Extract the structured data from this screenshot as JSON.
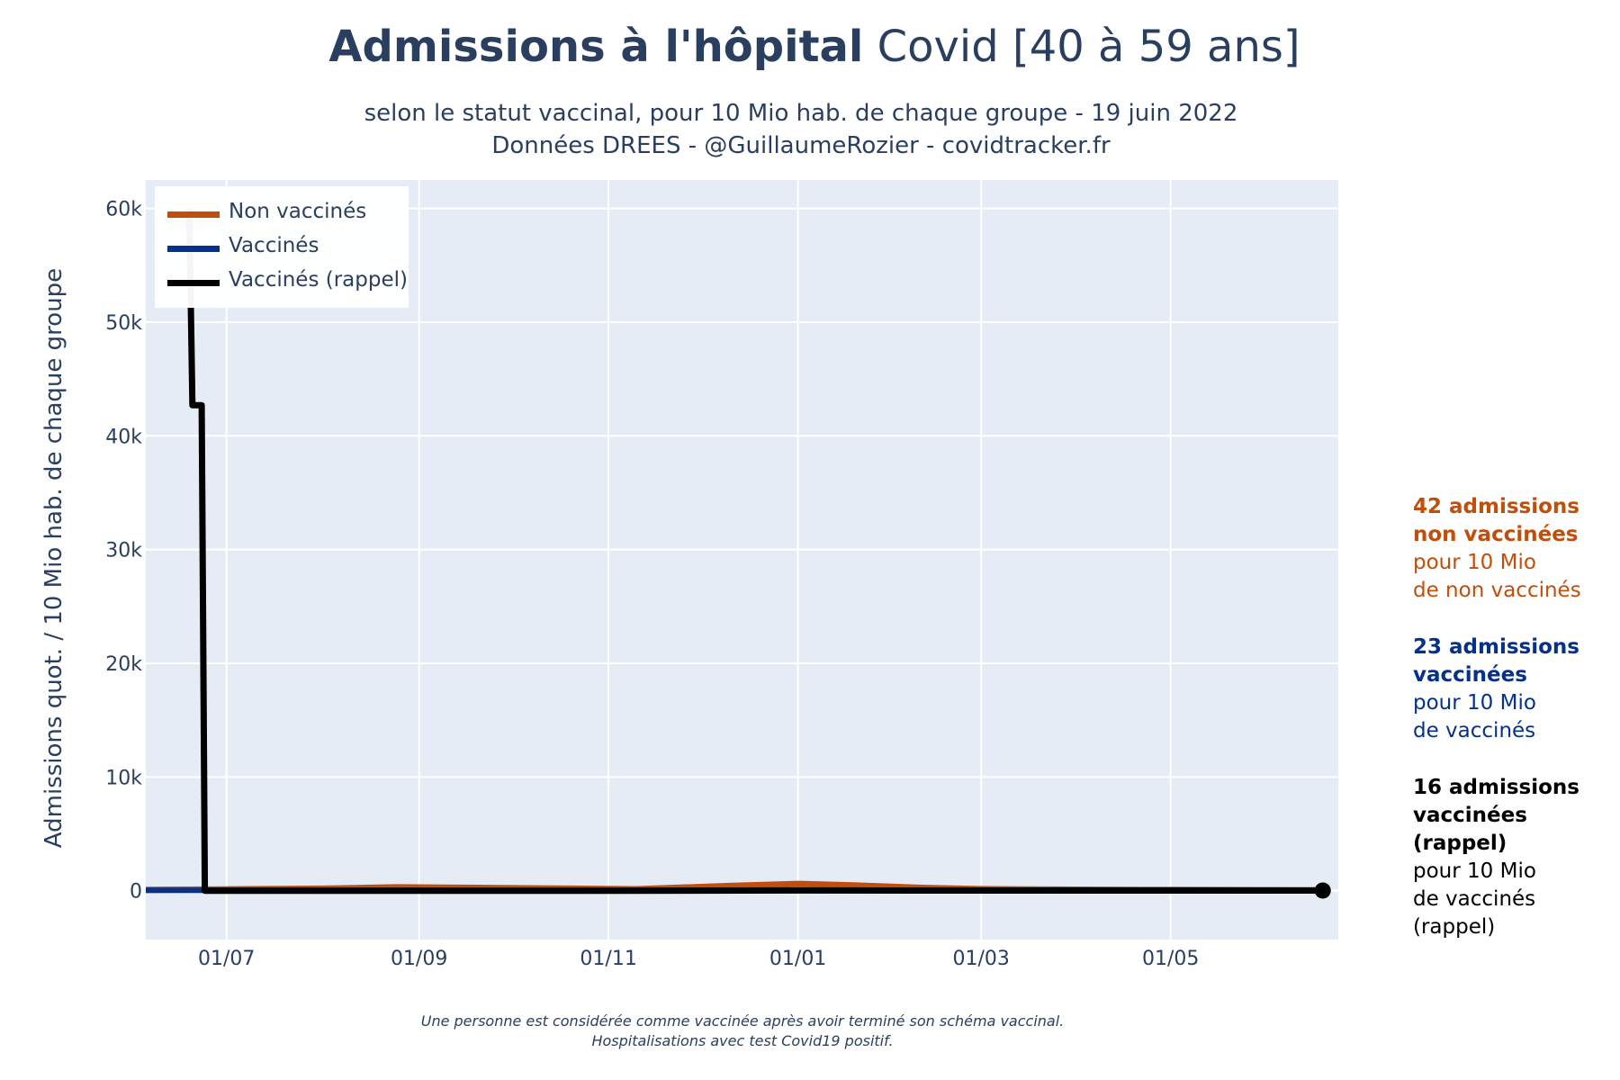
{
  "title_bold": "Admissions à l'hôpital",
  "title_rest": " Covid [40 à 59 ans]",
  "subtitle_line1": "selon le statut vaccinal, pour 10 Mio hab. de chaque groupe - 19 juin 2022",
  "subtitle_line2": "Données DREES - @GuillaumeRozier - covidtracker.fr",
  "footer_line1": "Une personne est considérée comme vaccinée après avoir terminé son schéma vaccinal.",
  "footer_line2": "Hospitalisations avec test Covid19 positif.",
  "side_annotations": [
    {
      "bold1": "42 admissions",
      "bold2": "non vaccinées",
      "line1": "pour 10 Mio",
      "line2": "de non vaccinés",
      "color": "#c14e0a"
    },
    {
      "bold1": "23 admissions",
      "bold2": "vaccinées",
      "line1": "pour 10 Mio",
      "line2": "de vaccinés",
      "color": "#05318a"
    },
    {
      "bold1": "16 admissions",
      "bold2": "vaccinées (rappel)",
      "line1": "pour 10 Mio",
      "line2": "de vaccinés (rappel)",
      "color": "#000000"
    }
  ],
  "chart_data": {
    "type": "line",
    "ylabel": "Admissions quot. / 10 Mio hab. de chaque groupe",
    "xlabel": "",
    "x_ticks": [
      "01/07",
      "01/09",
      "01/11",
      "01/01",
      "01/03",
      "01/05"
    ],
    "x_tick_dates": [
      "2021-07-01",
      "2021-09-01",
      "2021-11-01",
      "2022-01-01",
      "2022-03-01",
      "2022-05-01"
    ],
    "xlim": [
      "2021-06-05",
      "2022-06-24"
    ],
    "y_ticks": [
      0,
      10000,
      20000,
      30000,
      40000,
      50000,
      60000
    ],
    "y_tick_labels": [
      "0",
      "10k",
      "20k",
      "30k",
      "40k",
      "50k",
      "60k"
    ],
    "ylim": [
      -4300,
      62500
    ],
    "grid": true,
    "legend_position": "top-left",
    "background": "#e5ecf6",
    "series": [
      {
        "name": "Non vaccinés",
        "color": "#c14e0a",
        "points": [
          [
            "2021-06-05",
            80
          ],
          [
            "2021-07-01",
            120
          ],
          [
            "2021-08-01",
            180
          ],
          [
            "2021-08-25",
            300
          ],
          [
            "2021-09-15",
            260
          ],
          [
            "2021-10-10",
            200
          ],
          [
            "2021-11-10",
            130
          ],
          [
            "2021-12-10",
            420
          ],
          [
            "2022-01-01",
            600
          ],
          [
            "2022-01-20",
            460
          ],
          [
            "2022-02-10",
            250
          ],
          [
            "2022-03-01",
            140
          ],
          [
            "2022-04-01",
            90
          ],
          [
            "2022-05-01",
            70
          ],
          [
            "2022-06-19",
            42
          ]
        ]
      },
      {
        "name": "Vaccinés",
        "color": "#05318a",
        "points": [
          [
            "2021-06-05",
            40
          ],
          [
            "2021-07-01",
            30
          ],
          [
            "2021-09-01",
            30
          ],
          [
            "2021-11-01",
            20
          ],
          [
            "2022-01-01",
            60
          ],
          [
            "2022-03-01",
            30
          ],
          [
            "2022-05-01",
            25
          ],
          [
            "2022-06-19",
            23
          ]
        ]
      },
      {
        "name": "Vaccinés (rappel)",
        "color": "#000000",
        "points": [
          [
            "2021-06-19",
            60000
          ],
          [
            "2021-06-20",
            42700
          ],
          [
            "2021-06-23",
            42700
          ],
          [
            "2021-06-24",
            0
          ],
          [
            "2021-09-01",
            0
          ],
          [
            "2021-11-01",
            0
          ],
          [
            "2022-01-01",
            20
          ],
          [
            "2022-03-01",
            10
          ],
          [
            "2022-05-01",
            10
          ],
          [
            "2022-06-19",
            16
          ]
        ],
        "end_marker": true
      }
    ]
  }
}
